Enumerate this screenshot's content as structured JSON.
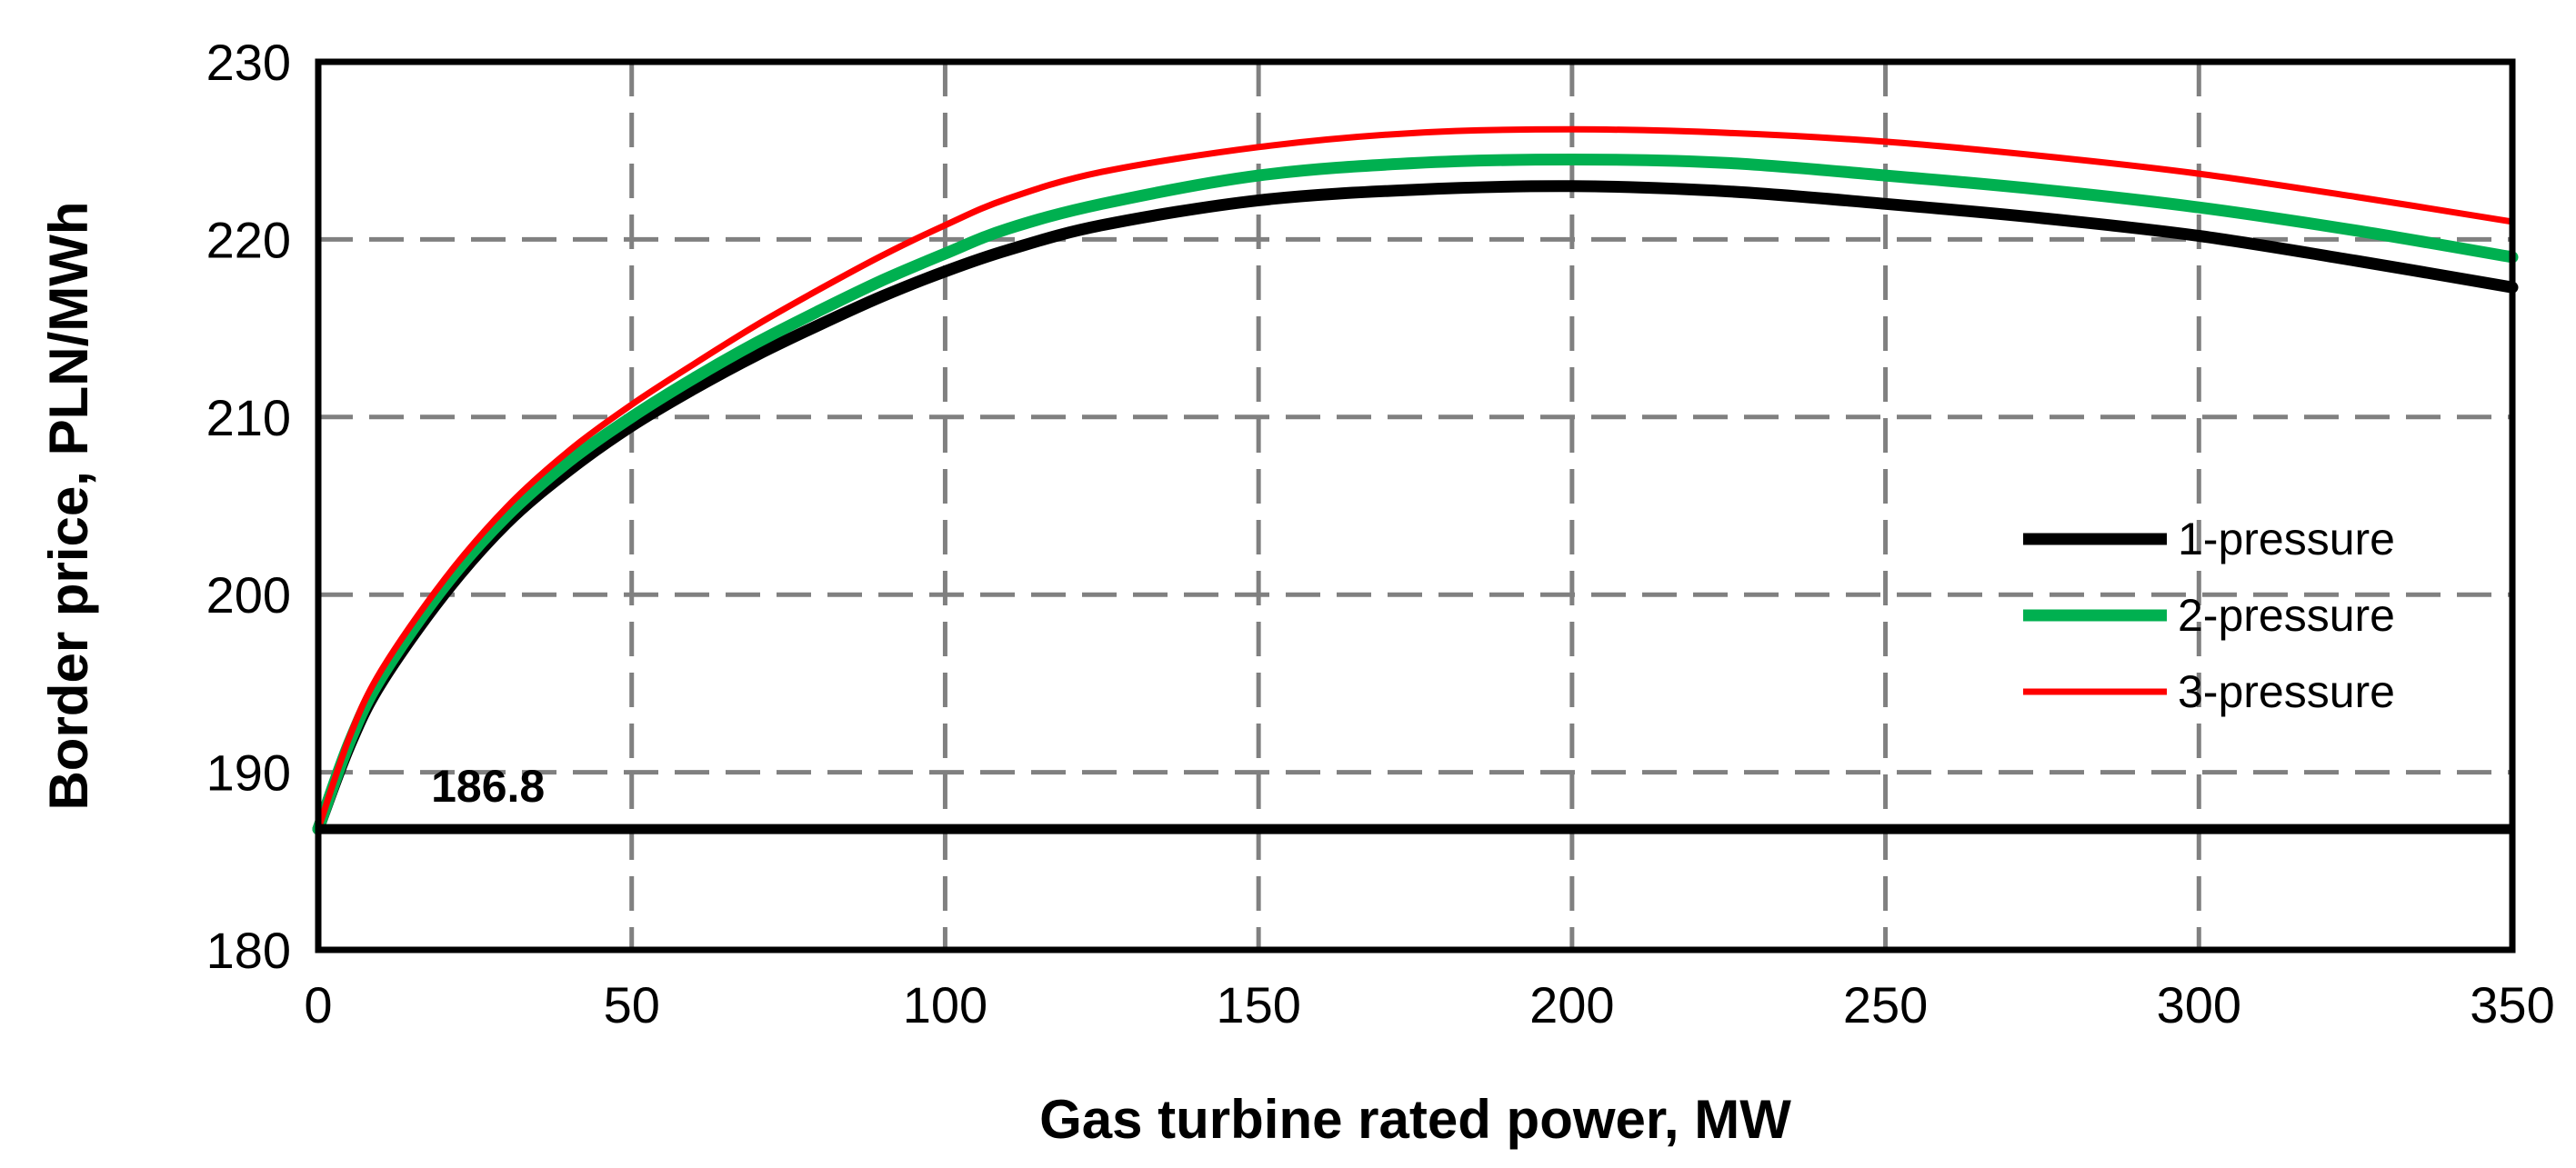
{
  "chart_data": {
    "type": "line",
    "title": "",
    "xlabel": "Gas turbine rated power, MW",
    "ylabel": "Border price, PLN/MWh",
    "xlim": [
      0,
      350
    ],
    "ylim": [
      180,
      230
    ],
    "x_ticks": [
      "0",
      "50",
      "100",
      "150",
      "200",
      "250",
      "300",
      "350"
    ],
    "y_ticks": [
      "180",
      "190",
      "200",
      "210",
      "220",
      "230"
    ],
    "grid": true,
    "legend_position": "right",
    "x": [
      0,
      5,
      10,
      20,
      30,
      40,
      50,
      60,
      70,
      80,
      90,
      100,
      110,
      125,
      150,
      175,
      200,
      225,
      250,
      275,
      300,
      325,
      350
    ],
    "series": [
      {
        "name": "1-pressure",
        "color": "#000000",
        "values": [
          186.8,
          191.5,
          195.0,
          200.0,
          204.0,
          207.0,
          209.5,
          211.6,
          213.5,
          215.2,
          216.8,
          218.2,
          219.4,
          220.8,
          222.2,
          222.8,
          223.0,
          222.7,
          222.0,
          221.2,
          220.2,
          218.8,
          217.3
        ]
      },
      {
        "name": "2-pressure",
        "color": "#00b050",
        "values": [
          186.8,
          191.7,
          195.3,
          200.4,
          204.4,
          207.5,
          210.0,
          212.2,
          214.2,
          216.0,
          217.7,
          219.2,
          220.6,
          222.0,
          223.6,
          224.3,
          224.5,
          224.3,
          223.6,
          222.8,
          221.8,
          220.5,
          219.0
        ]
      },
      {
        "name": "3-pressure",
        "color": "#ff0000",
        "values": [
          186.8,
          192.0,
          195.7,
          200.8,
          204.9,
          208.1,
          210.7,
          213.0,
          215.2,
          217.2,
          219.1,
          220.8,
          222.3,
          223.8,
          225.2,
          226.0,
          226.2,
          226.0,
          225.5,
          224.7,
          223.7,
          222.4,
          221.0
        ]
      }
    ],
    "reference_line": {
      "label": "186.8",
      "value": 186.8,
      "color": "#000000"
    }
  }
}
